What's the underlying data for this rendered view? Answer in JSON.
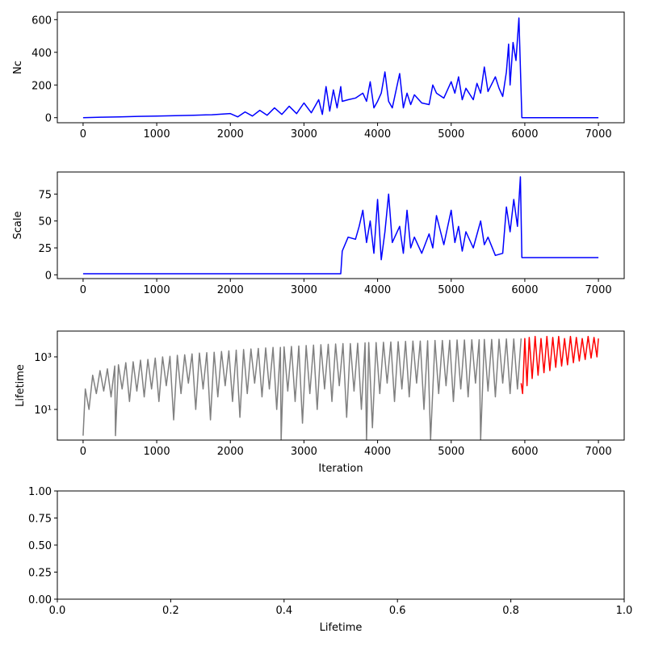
{
  "chart_data": [
    {
      "type": "line",
      "ylabel": "Nc",
      "xlim": [
        -350,
        7350
      ],
      "ylim": [
        -31,
        646
      ],
      "xticks": [
        0,
        1000,
        2000,
        3000,
        4000,
        5000,
        6000,
        7000
      ],
      "yticks": [
        0,
        200,
        400,
        600
      ],
      "series": [
        {
          "color": "#0000ff",
          "x": [
            0,
            250,
            500,
            750,
            1000,
            1250,
            1500,
            1750,
            2000,
            2100,
            2200,
            2300,
            2400,
            2500,
            2600,
            2700,
            2800,
            2900,
            3000,
            3100,
            3200,
            3250,
            3300,
            3350,
            3400,
            3450,
            3500,
            3520,
            3600,
            3700,
            3800,
            3850,
            3900,
            3950,
            4000,
            4050,
            4100,
            4150,
            4200,
            4300,
            4350,
            4400,
            4450,
            4500,
            4600,
            4700,
            4750,
            4800,
            4900,
            5000,
            5050,
            5100,
            5150,
            5200,
            5300,
            5350,
            5400,
            5450,
            5500,
            5600,
            5650,
            5700,
            5750,
            5780,
            5800,
            5840,
            5880,
            5920,
            5960,
            7000
          ],
          "values": [
            0,
            3,
            5,
            8,
            10,
            12,
            15,
            18,
            25,
            5,
            35,
            10,
            45,
            15,
            60,
            20,
            70,
            25,
            90,
            30,
            110,
            20,
            190,
            40,
            170,
            60,
            190,
            100,
            110,
            120,
            150,
            100,
            220,
            60,
            100,
            150,
            280,
            100,
            60,
            270,
            60,
            150,
            80,
            140,
            90,
            80,
            200,
            150,
            120,
            220,
            150,
            250,
            110,
            180,
            110,
            210,
            150,
            310,
            160,
            250,
            180,
            130,
            280,
            450,
            200,
            460,
            350,
            610,
            0,
            0
          ]
        }
      ]
    },
    {
      "type": "line",
      "ylabel": "Scale",
      "xlim": [
        -350,
        7350
      ],
      "ylim": [
        -3.5,
        95.5
      ],
      "xticks": [
        0,
        1000,
        2000,
        3000,
        4000,
        5000,
        6000,
        7000
      ],
      "yticks": [
        0,
        25,
        50,
        75
      ],
      "series": [
        {
          "color": "#0000ff",
          "x": [
            0,
            3500,
            3520,
            3600,
            3700,
            3750,
            3800,
            3850,
            3900,
            3950,
            4000,
            4050,
            4100,
            4150,
            4200,
            4300,
            4350,
            4400,
            4450,
            4500,
            4600,
            4700,
            4750,
            4800,
            4900,
            5000,
            5050,
            5100,
            5150,
            5200,
            5300,
            5400,
            5450,
            5500,
            5600,
            5700,
            5750,
            5800,
            5850,
            5900,
            5940,
            5960,
            7000
          ],
          "values": [
            1,
            1,
            22,
            35,
            33,
            45,
            60,
            30,
            50,
            20,
            70,
            14,
            40,
            75,
            30,
            45,
            20,
            60,
            25,
            35,
            20,
            38,
            25,
            55,
            28,
            60,
            30,
            45,
            22,
            40,
            25,
            50,
            28,
            35,
            18,
            20,
            63,
            40,
            70,
            45,
            91,
            16,
            16
          ]
        }
      ]
    },
    {
      "type": "line",
      "ylabel": "Lifetime",
      "xlabel": "Iteration",
      "yscale": "log",
      "xlim": [
        -350,
        7350
      ],
      "ylim": [
        0.68,
        9600
      ],
      "xticks": [
        0,
        1000,
        2000,
        3000,
        4000,
        5000,
        6000,
        7000
      ],
      "yticks": [
        {
          "value": 10,
          "label": "10¹"
        },
        {
          "value": 1000,
          "label": "10³"
        }
      ],
      "series": [
        {
          "color": "#808080",
          "x": [
            0,
            30,
            80,
            130,
            180,
            230,
            280,
            330,
            380,
            430,
            440,
            480,
            530,
            580,
            630,
            680,
            730,
            780,
            830,
            880,
            930,
            980,
            1030,
            1080,
            1130,
            1180,
            1230,
            1280,
            1330,
            1380,
            1430,
            1480,
            1530,
            1580,
            1630,
            1680,
            1730,
            1780,
            1830,
            1880,
            1930,
            1980,
            2030,
            2080,
            2130,
            2180,
            2230,
            2280,
            2330,
            2380,
            2430,
            2480,
            2530,
            2580,
            2630,
            2680,
            2690,
            2730,
            2780,
            2830,
            2880,
            2930,
            2980,
            3030,
            3080,
            3130,
            3180,
            3230,
            3280,
            3330,
            3380,
            3430,
            3480,
            3530,
            3580,
            3630,
            3680,
            3730,
            3780,
            3830,
            3850,
            3880,
            3930,
            3980,
            4030,
            4080,
            4130,
            4180,
            4230,
            4280,
            4330,
            4380,
            4430,
            4480,
            4530,
            4580,
            4630,
            4680,
            4720,
            4780,
            4830,
            4880,
            4930,
            4980,
            5030,
            5080,
            5130,
            5180,
            5230,
            5280,
            5330,
            5380,
            5400,
            5450,
            5500,
            5550,
            5600,
            5650,
            5700,
            5750,
            5800,
            5850,
            5900,
            5950
          ],
          "values": [
            1,
            60,
            10,
            200,
            40,
            300,
            50,
            350,
            30,
            450,
            1,
            500,
            60,
            600,
            20,
            650,
            50,
            750,
            30,
            800,
            60,
            900,
            20,
            1000,
            80,
            1050,
            4,
            1150,
            40,
            1200,
            100,
            1300,
            10,
            1400,
            60,
            1450,
            4,
            1500,
            30,
            1600,
            80,
            1700,
            20,
            1800,
            5,
            1900,
            40,
            2000,
            100,
            2100,
            30,
            2200,
            60,
            2300,
            10,
            2300,
            0.7,
            2400,
            50,
            2500,
            20,
            2600,
            3,
            2700,
            40,
            2800,
            10,
            2900,
            60,
            3000,
            20,
            3100,
            80,
            3200,
            5,
            3200,
            50,
            3300,
            10,
            3400,
            0.7,
            3500,
            2,
            3500,
            40,
            3600,
            100,
            3700,
            20,
            3800,
            60,
            3900,
            30,
            4000,
            100,
            4000,
            10,
            4100,
            0.7,
            4200,
            40,
            4200,
            80,
            4300,
            20,
            4400,
            60,
            4400,
            30,
            4500,
            100,
            4500,
            0.7,
            4600,
            50,
            4600,
            30,
            4700,
            100,
            4800,
            40,
            4800,
            60,
            5000
          ]
        },
        {
          "color": "#ff0000",
          "x": [
            5950,
            5970,
            6000,
            6030,
            6060,
            6100,
            6140,
            6180,
            6220,
            6260,
            6300,
            6340,
            6380,
            6420,
            6460,
            6500,
            6540,
            6580,
            6620,
            6660,
            6700,
            6740,
            6780,
            6820,
            6860,
            6900,
            6940,
            6980,
            7000
          ],
          "values": [
            100,
            40,
            5000,
            80,
            5500,
            150,
            6000,
            200,
            5000,
            250,
            6000,
            300,
            5500,
            400,
            6000,
            450,
            5000,
            500,
            6000,
            600,
            5500,
            700,
            5000,
            800,
            6000,
            900,
            5500,
            1000,
            5000
          ]
        }
      ]
    },
    {
      "type": "line",
      "xlabel": "Lifetime",
      "xlim": [
        0,
        1
      ],
      "ylim": [
        0,
        1
      ],
      "xticks": [
        {
          "value": 0,
          "label": "0.0"
        },
        {
          "value": 0.2,
          "label": "0.2"
        },
        {
          "value": 0.4,
          "label": "0.4"
        },
        {
          "value": 0.6,
          "label": "0.6"
        },
        {
          "value": 0.8,
          "label": "0.8"
        },
        {
          "value": 1,
          "label": "1.0"
        }
      ],
      "yticks": [
        {
          "value": 0,
          "label": "0.00"
        },
        {
          "value": 0.25,
          "label": "0.25"
        },
        {
          "value": 0.5,
          "label": "0.50"
        },
        {
          "value": 0.75,
          "label": "0.75"
        },
        {
          "value": 1,
          "label": "1.00"
        }
      ],
      "series": []
    }
  ]
}
